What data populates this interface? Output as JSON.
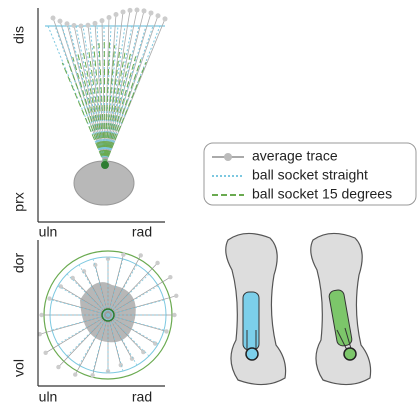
{
  "panel_top": {
    "y_label_top": "dis",
    "y_label_bottom": "prx",
    "x_label_left": "uln",
    "x_label_right": "rad"
  },
  "panel_bottom": {
    "y_label_top": "dor",
    "y_label_bottom": "vol",
    "x_label_left": "uln",
    "x_label_right": "rad"
  },
  "legend": {
    "items": [
      "average trace",
      "ball socket straight",
      "ball socket 15 degrees"
    ]
  }
}
